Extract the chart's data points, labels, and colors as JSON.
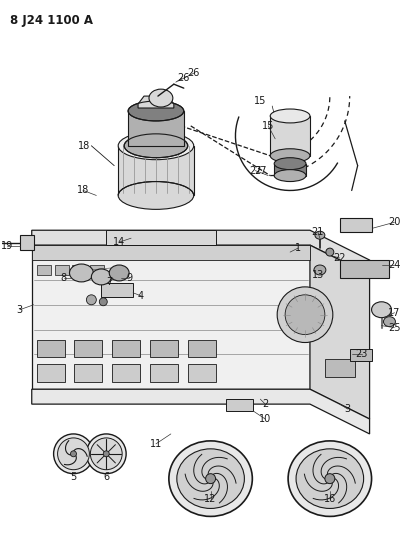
{
  "title": "8 J24 1100 A",
  "bg_color": "#ffffff",
  "line_color": "#1a1a1a",
  "text_color": "#1a1a1a",
  "fig_width": 4.14,
  "fig_height": 5.33,
  "dpi": 100,
  "gray_light": "#d8d8d8",
  "gray_mid": "#b0b0b0",
  "gray_dark": "#808080",
  "gray_fill": "#c8c8c8"
}
